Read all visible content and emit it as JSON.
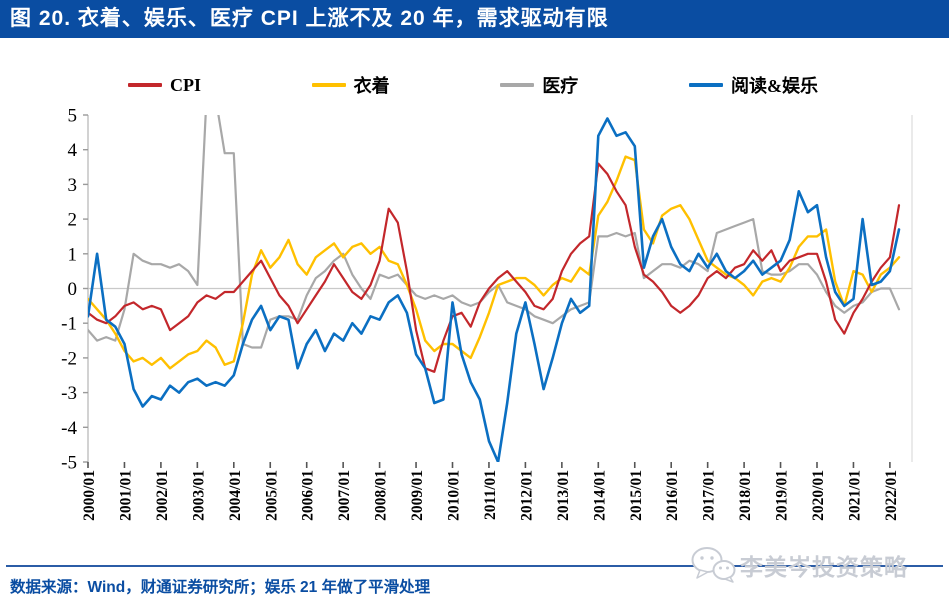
{
  "title_bar": {
    "text": "图 20. 衣着、娱乐、医疗 CPI 上涨不及 20 年，需求驱动有限"
  },
  "legend": [
    {
      "label": "CPI",
      "color": "#C3272B"
    },
    {
      "label": "衣着",
      "color": "#FFC000"
    },
    {
      "label": "医疗",
      "color": "#A8A8A8"
    },
    {
      "label": "阅读&娱乐",
      "color": "#0B6FC2"
    }
  ],
  "footer": {
    "source_note": "数据来源：Wind，财通证券研究所；娱乐 21 年做了平滑处理",
    "watermark_text": "李美岑投资策略",
    "watermark_icon": "wechat-chat-bubbles",
    "line_color": "#2B5CA6",
    "text_color": "#0A4DA2"
  },
  "chart_data": {
    "type": "line",
    "title": "衣着、娱乐、医疗 CPI 上涨不及 20 年，需求驱动有限",
    "x_start_year": 2000,
    "x_step_years": 0.25,
    "x_tick_labels": [
      "2000/01",
      "2001/01",
      "2002/01",
      "2003/01",
      "2004/01",
      "2005/01",
      "2006/01",
      "2007/01",
      "2008/01",
      "2009/01",
      "2010/01",
      "2011/01",
      "2012/01",
      "2013/01",
      "2014/01",
      "2015/01",
      "2016/01",
      "2017/01",
      "2018/01",
      "2019/01",
      "2020/01",
      "2021/01",
      "2022/01"
    ],
    "y_ticks": [
      5,
      4,
      3,
      2,
      1,
      0,
      -1,
      -2,
      -3,
      -4,
      -5
    ],
    "ylim": [
      -5,
      5
    ],
    "grid": "zero-line-only",
    "legend_position": "top",
    "axis_color": "#BFBFBF",
    "zero_line_color": "#C9C9C9",
    "series": [
      {
        "name": "CPI",
        "color": "#C3272B",
        "width": 2.2,
        "values": [
          -0.7,
          -0.9,
          -1.0,
          -0.8,
          -0.5,
          -0.4,
          -0.6,
          -0.5,
          -0.6,
          -1.2,
          -1.0,
          -0.8,
          -0.4,
          -0.2,
          -0.3,
          -0.1,
          -0.1,
          0.2,
          0.5,
          0.8,
          0.3,
          -0.2,
          -0.5,
          -1.0,
          -0.6,
          -0.2,
          0.2,
          0.7,
          0.3,
          -0.1,
          -0.3,
          0.1,
          0.8,
          2.3,
          1.9,
          0.5,
          -1.2,
          -2.3,
          -2.4,
          -1.5,
          -0.8,
          -0.7,
          -1.1,
          -0.4,
          0.0,
          0.3,
          0.5,
          0.2,
          -0.1,
          -0.5,
          -0.6,
          -0.3,
          0.5,
          1.0,
          1.3,
          1.5,
          3.6,
          3.3,
          2.8,
          2.4,
          1.2,
          0.4,
          0.2,
          -0.1,
          -0.5,
          -0.7,
          -0.5,
          -0.2,
          0.3,
          0.5,
          0.3,
          0.6,
          0.7,
          1.1,
          0.8,
          1.1,
          0.5,
          0.8,
          0.9,
          1.0,
          1.0,
          0.2,
          -0.9,
          -1.3,
          -0.7,
          -0.3,
          0.2,
          0.6,
          0.9,
          2.4
        ]
      },
      {
        "name": "衣着",
        "color": "#FFC000",
        "width": 2.4,
        "values": [
          -0.3,
          -0.6,
          -0.9,
          -1.3,
          -1.8,
          -2.1,
          -2.0,
          -2.2,
          -2.0,
          -2.3,
          -2.1,
          -1.9,
          -1.8,
          -1.5,
          -1.7,
          -2.2,
          -2.1,
          -1.0,
          0.4,
          1.1,
          0.6,
          0.9,
          1.4,
          0.7,
          0.4,
          0.9,
          1.1,
          1.3,
          0.9,
          1.2,
          1.3,
          1.0,
          1.2,
          0.8,
          0.7,
          0.1,
          -0.6,
          -1.5,
          -1.8,
          -1.6,
          -1.6,
          -1.8,
          -2.0,
          -1.4,
          -0.7,
          0.1,
          0.2,
          0.3,
          0.3,
          0.1,
          -0.2,
          0.1,
          0.3,
          0.2,
          0.6,
          0.4,
          2.1,
          2.5,
          3.1,
          3.8,
          3.7,
          1.7,
          1.3,
          2.1,
          2.3,
          2.4,
          2.0,
          1.4,
          0.8,
          0.6,
          0.4,
          0.3,
          0.1,
          -0.2,
          0.2,
          0.3,
          0.2,
          0.6,
          1.2,
          1.5,
          1.5,
          1.7,
          0.2,
          -0.5,
          0.5,
          0.4,
          -0.1,
          0.4,
          0.6,
          0.9
        ]
      },
      {
        "name": "医疗",
        "color": "#A8A8A8",
        "width": 2.2,
        "values": [
          -1.2,
          -1.5,
          -1.4,
          -1.5,
          -0.6,
          1.0,
          0.8,
          0.7,
          0.7,
          0.6,
          0.7,
          0.5,
          0.1,
          5.5,
          5.5,
          3.9,
          3.9,
          -1.6,
          -1.7,
          -1.7,
          -0.9,
          -0.8,
          -0.8,
          -0.9,
          -0.2,
          0.3,
          0.5,
          0.8,
          1.0,
          0.4,
          0.0,
          -0.3,
          0.4,
          0.3,
          0.4,
          0.1,
          -0.2,
          -0.3,
          -0.2,
          -0.3,
          -0.2,
          -0.4,
          -0.5,
          -0.4,
          -0.1,
          0.1,
          -0.4,
          -0.5,
          -0.6,
          -0.8,
          -0.9,
          -1.0,
          -0.8,
          -0.6,
          -0.5,
          -0.4,
          1.5,
          1.5,
          1.6,
          1.5,
          1.6,
          0.3,
          0.5,
          0.7,
          0.7,
          0.6,
          0.8,
          0.7,
          0.5,
          1.6,
          1.7,
          1.8,
          1.9,
          2.0,
          0.5,
          0.4,
          0.4,
          0.5,
          0.7,
          0.7,
          0.4,
          -0.1,
          -0.5,
          -0.7,
          -0.5,
          -0.4,
          -0.1,
          0.0,
          0.0,
          -0.6
        ]
      },
      {
        "name": "阅读&娱乐",
        "color": "#0B6FC2",
        "width": 2.6,
        "values": [
          -0.8,
          1.0,
          -0.9,
          -1.1,
          -1.6,
          -2.9,
          -3.4,
          -3.1,
          -3.2,
          -2.8,
          -3.0,
          -2.7,
          -2.6,
          -2.8,
          -2.7,
          -2.8,
          -2.5,
          -1.6,
          -0.9,
          -0.5,
          -1.2,
          -0.8,
          -0.9,
          -2.3,
          -1.6,
          -1.2,
          -1.8,
          -1.3,
          -1.5,
          -1.0,
          -1.3,
          -0.8,
          -0.9,
          -0.4,
          -0.2,
          -0.7,
          -1.9,
          -2.3,
          -3.3,
          -3.2,
          -0.4,
          -1.9,
          -2.7,
          -3.2,
          -4.4,
          -5.0,
          -3.3,
          -1.3,
          -0.4,
          -1.6,
          -2.9,
          -2.0,
          -1.0,
          -0.3,
          -0.7,
          -0.5,
          4.4,
          4.9,
          4.4,
          4.5,
          4.1,
          0.6,
          1.5,
          2.0,
          1.2,
          0.7,
          0.5,
          1.0,
          0.6,
          1.0,
          0.5,
          0.3,
          0.5,
          0.8,
          0.4,
          0.6,
          0.8,
          1.4,
          2.8,
          2.2,
          2.4,
          0.9,
          -0.1,
          -0.5,
          -0.3,
          2.0,
          0.1,
          0.2,
          0.5,
          1.7
        ]
      }
    ]
  }
}
